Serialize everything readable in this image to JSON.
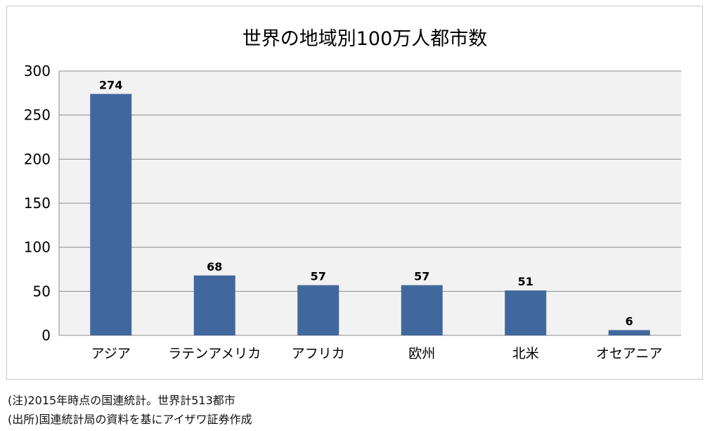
{
  "chart_data": {
    "type": "bar",
    "title": "世界の地域別100万人都市数",
    "xlabel": "",
    "ylabel": "",
    "categories": [
      "アジア",
      "ラテンアメリカ",
      "アフリカ",
      "欧州",
      "北米",
      "オセアニア"
    ],
    "values": [
      274,
      68,
      57,
      57,
      51,
      6
    ],
    "data_labels": [
      "274",
      "68",
      "57",
      "57",
      "51",
      "6"
    ],
    "ylim": [
      0,
      300
    ],
    "yticks": [
      0,
      50,
      100,
      150,
      200,
      250,
      300
    ],
    "ytick_labels": [
      "0",
      "50",
      "100",
      "150",
      "200",
      "250",
      "300"
    ],
    "grid": true,
    "legend": "none",
    "bar_color": "#41689d",
    "plot_background": "#f2f2f2"
  },
  "notes": [
    "(注)2015年時点の国連統計。世界計513都市",
    "(出所)国連統計局の資料を基にアイザワ証券作成"
  ]
}
